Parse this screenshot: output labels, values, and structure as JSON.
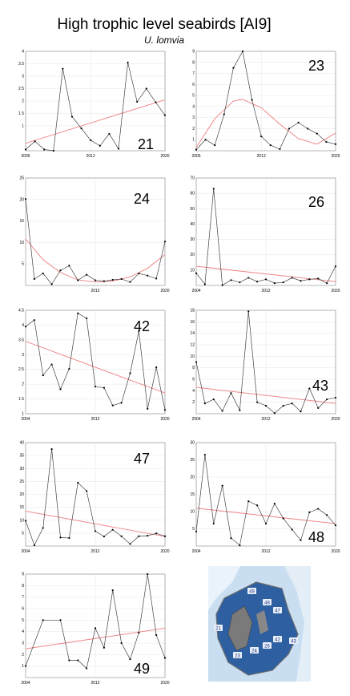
{
  "header": {
    "title": "High trophic level seabirds [AI9]",
    "subtitle": "U. lomvia"
  },
  "colors": {
    "series": "#000000",
    "trend": "#f08a8a",
    "axis": "#888888",
    "grid": "#e6e6e6"
  },
  "chart_data": [
    {
      "type": "line",
      "label": "21",
      "x": [
        2005,
        2006,
        2007,
        2008,
        2009,
        2010,
        2011,
        2012,
        2013,
        2014,
        2015,
        2016,
        2017,
        2018,
        2019,
        2020
      ],
      "values": [
        0.05,
        0.38,
        0.05,
        0.0,
        3.3,
        1.37,
        0.9,
        0.42,
        0.2,
        0.68,
        0.08,
        3.55,
        1.97,
        2.5,
        1.95,
        1.43
      ],
      "trend": {
        "kind": "linear",
        "start": 0.3,
        "end": 2.05
      },
      "yticks": [
        "1",
        "1.5",
        "2",
        "2.5",
        "3",
        "3.5",
        "4"
      ],
      "xticks": [
        "2005",
        "2012",
        "2020"
      ],
      "xlim": [
        2005,
        2020
      ],
      "ylim": [
        0,
        4
      ]
    },
    {
      "type": "line",
      "label": "23",
      "x": [
        2005,
        2006,
        2007,
        2008,
        2009,
        2010,
        2011,
        2012,
        2013,
        2014,
        2015,
        2016,
        2017,
        2018,
        2019,
        2020
      ],
      "values": [
        0.1,
        1.0,
        0.5,
        3.3,
        7.5,
        9.0,
        4.6,
        1.3,
        0.5,
        0.15,
        2.0,
        2.55,
        2.0,
        1.55,
        0.8,
        0.6
      ],
      "trend": {
        "kind": "curve",
        "points": [
          [
            2005,
            0.3
          ],
          [
            2007,
            2.9
          ],
          [
            2009,
            4.5
          ],
          [
            2010,
            4.65
          ],
          [
            2012,
            3.9
          ],
          [
            2014,
            2.4
          ],
          [
            2016,
            1.1
          ],
          [
            2018,
            0.6
          ],
          [
            2020,
            1.6
          ]
        ]
      },
      "yticks": [
        "1",
        "2",
        "3",
        "4",
        "5",
        "6",
        "7",
        "8",
        "9"
      ],
      "xticks": [
        "2005",
        "2012",
        "2020"
      ],
      "xlim": [
        2005,
        2020
      ],
      "ylim": [
        0,
        9
      ]
    },
    {
      "type": "line",
      "label": "24",
      "x": [
        2004,
        2005,
        2006,
        2007,
        2008,
        2009,
        2010,
        2011,
        2012,
        2013,
        2014,
        2015,
        2016,
        2017,
        2018,
        2019,
        2020
      ],
      "values": [
        20.1,
        1.5,
        2.8,
        0.3,
        3.5,
        4.6,
        1.2,
        2.5,
        1.2,
        1.0,
        1.3,
        1.5,
        0.8,
        2.8,
        2.3,
        1.6,
        10.2
      ],
      "trend": {
        "kind": "curve",
        "points": [
          [
            2004,
            10.8
          ],
          [
            2006,
            6.0
          ],
          [
            2008,
            3.0
          ],
          [
            2010,
            1.3
          ],
          [
            2012,
            0.8
          ],
          [
            2014,
            1.0
          ],
          [
            2016,
            2.0
          ],
          [
            2018,
            4.0
          ],
          [
            2020,
            7.2
          ]
        ]
      },
      "yticks": [
        "5",
        "10",
        "15",
        "20",
        "25"
      ],
      "xticks": [
        "2012",
        "2020"
      ],
      "xlim": [
        2004,
        2020
      ],
      "ylim": [
        0,
        25
      ]
    },
    {
      "type": "line",
      "label": "26",
      "x": [
        2004,
        2005,
        2006,
        2007,
        2008,
        2009,
        2010,
        2011,
        2012,
        2013,
        2014,
        2015,
        2016,
        2017,
        2018,
        2019,
        2020
      ],
      "values": [
        8.0,
        0.8,
        63.0,
        0.2,
        3.5,
        2.0,
        5.0,
        2.5,
        4.0,
        1.5,
        2.0,
        5.0,
        3.0,
        4.0,
        4.5,
        1.5,
        12.5
      ],
      "trend": {
        "kind": "linear",
        "start": 12.5,
        "end": 2.5
      },
      "yticks": [
        "10",
        "20",
        "30",
        "40",
        "50",
        "60",
        "70"
      ],
      "xticks": [
        "2004",
        "2012",
        "2020"
      ],
      "xlim": [
        2004,
        2020
      ],
      "ylim": [
        0,
        70
      ]
    },
    {
      "type": "line",
      "label": "42",
      "x": [
        2004,
        2005,
        2006,
        2007,
        2008,
        2009,
        2010,
        2011,
        2012,
        2013,
        2014,
        2015,
        2016,
        2017,
        2018,
        2019,
        2020
      ],
      "values": [
        3.95,
        4.17,
        2.3,
        2.67,
        1.83,
        2.52,
        4.4,
        4.23,
        1.92,
        1.88,
        1.28,
        1.37,
        2.37,
        3.8,
        1.17,
        2.57,
        1.13
      ],
      "trend": {
        "kind": "linear",
        "start": 3.45,
        "end": 1.7
      },
      "yticks": [
        "1",
        "1.5",
        "2",
        "2.5",
        "3",
        "3.5",
        "4",
        "4.5"
      ],
      "xticks": [
        "2004",
        "2012",
        "2020"
      ],
      "xlim": [
        2004,
        2020
      ],
      "ylim": [
        1,
        4.5
      ]
    },
    {
      "type": "line",
      "label": "43",
      "x": [
        2004,
        2005,
        2006,
        2007,
        2008,
        2009,
        2010,
        2011,
        2012,
        2013,
        2014,
        2015,
        2016,
        2017,
        2018,
        2019,
        2020
      ],
      "values": [
        9.0,
        1.8,
        2.5,
        0.5,
        3.6,
        0.6,
        17.8,
        2.0,
        1.4,
        0.1,
        1.4,
        1.8,
        0.4,
        4.4,
        1.0,
        2.5,
        2.8
      ],
      "trend": {
        "kind": "linear",
        "start": 4.6,
        "end": 1.8
      },
      "yticks": [
        "2",
        "4",
        "6",
        "8",
        "10",
        "12",
        "14",
        "16",
        "18"
      ],
      "xticks": [
        "2004",
        "2012",
        "2020"
      ],
      "xlim": [
        2004,
        2020
      ],
      "ylim": [
        0,
        18
      ]
    },
    {
      "type": "line",
      "label": "47",
      "x": [
        2004,
        2005,
        2006,
        2007,
        2008,
        2009,
        2010,
        2011,
        2012,
        2013,
        2014,
        2015,
        2016,
        2017,
        2018,
        2019,
        2020
      ],
      "values": [
        9.8,
        0.3,
        7.0,
        37.5,
        3.3,
        3.1,
        24.5,
        21.3,
        5.8,
        3.7,
        6.3,
        3.8,
        0.8,
        3.8,
        4.0,
        4.9,
        3.8
      ],
      "trend": {
        "kind": "linear",
        "start": 13.5,
        "end": 3.7
      },
      "yticks": [
        "5",
        "10",
        "15",
        "20",
        "25",
        "30",
        "35",
        "40"
      ],
      "xticks": [
        "2004",
        "2012",
        "2020"
      ],
      "xlim": [
        2004,
        2020
      ],
      "ylim": [
        0,
        40
      ]
    },
    {
      "type": "line",
      "label": "48",
      "x": [
        2004,
        2005,
        2006,
        2007,
        2008,
        2009,
        2010,
        2011,
        2012,
        2013,
        2014,
        2015,
        2016,
        2017,
        2018,
        2019,
        2020
      ],
      "values": [
        4.2,
        26.5,
        6.5,
        17.5,
        2.3,
        0.2,
        13.0,
        11.8,
        6.5,
        12.3,
        8.0,
        4.8,
        1.7,
        9.8,
        10.8,
        9.0,
        6.0
      ],
      "trend": {
        "kind": "linear",
        "start": 11.0,
        "end": 6.5
      },
      "yticks": [
        "5",
        "10",
        "15",
        "20",
        "25",
        "30"
      ],
      "xticks": [
        "2004",
        "2012",
        "2020"
      ],
      "xlim": [
        2004,
        2020
      ],
      "ylim": [
        0,
        30
      ]
    },
    {
      "type": "line",
      "label": "49",
      "x": [
        2004,
        2006,
        2008,
        2009,
        2010,
        2011,
        2012,
        2013,
        2014,
        2015,
        2016,
        2017,
        2018,
        2019,
        2020
      ],
      "values": [
        1.0,
        5.0,
        5.0,
        1.5,
        1.5,
        0.8,
        4.3,
        2.6,
        7.6,
        3.0,
        1.6,
        3.9,
        9.0,
        3.7,
        1.7
      ],
      "trend": {
        "kind": "linear",
        "start": 2.5,
        "end": 4.3
      },
      "yticks": [
        "1",
        "2",
        "3",
        "4",
        "5",
        "6",
        "7",
        "8",
        "9"
      ],
      "xticks": [
        "2004",
        "2012",
        "2020"
      ],
      "xlim": [
        2004,
        2020
      ],
      "ylim": [
        0,
        9
      ]
    }
  ],
  "map": {
    "labels": [
      "21",
      "23",
      "24",
      "26",
      "42",
      "43",
      "47",
      "48",
      "49"
    ]
  }
}
